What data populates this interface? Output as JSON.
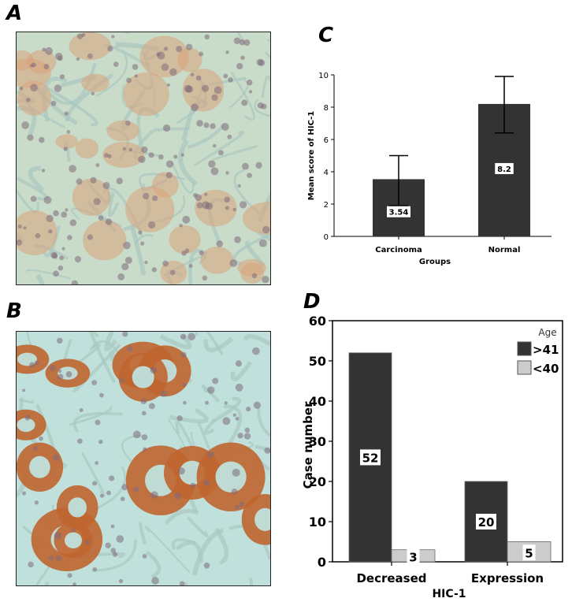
{
  "panels": {
    "a": "A",
    "b": "B",
    "c": "C",
    "d": "D"
  },
  "colors": {
    "bar_dark": "#333333",
    "bar_light": "#cccccc",
    "tissue_bg_a": "#c9dbc9",
    "tissue_bg_b": "#bfe0db",
    "stain_light": "#d9a27a",
    "stain_dark": "#c0652f",
    "nucleus": "#7d6a7a"
  },
  "chart_data": [
    {
      "panel": "C",
      "type": "bar",
      "categories": [
        "Carcinoma",
        "Normal"
      ],
      "values": [
        3.54,
        8.2
      ],
      "errors": [
        [
          1.9,
          5.0
        ],
        [
          6.4,
          9.9
        ]
      ],
      "value_labels": [
        "3.54",
        "8.2"
      ],
      "xlabel": "Groups",
      "ylabel": "Mean score of HIC-1",
      "ylim": [
        0,
        10
      ],
      "yticks": [
        0,
        2,
        4,
        6,
        8,
        10
      ],
      "grid": false
    },
    {
      "panel": "D",
      "type": "bar",
      "categories": [
        "Decreased",
        "Expression"
      ],
      "series": [
        {
          "name": ">41",
          "values": [
            52,
            20
          ],
          "color": "#333333",
          "labels": [
            "52",
            "20"
          ]
        },
        {
          "name": "<40",
          "values": [
            3,
            5
          ],
          "color": "#cccccc",
          "labels": [
            "3",
            "5"
          ]
        }
      ],
      "legend_title": "Age",
      "legend_position": "top-right",
      "xlabel": "HIC-1",
      "ylabel": "Case number",
      "ylim": [
        0,
        60
      ],
      "yticks": [
        0,
        10,
        20,
        30,
        40,
        50,
        60
      ],
      "grid": false
    }
  ]
}
